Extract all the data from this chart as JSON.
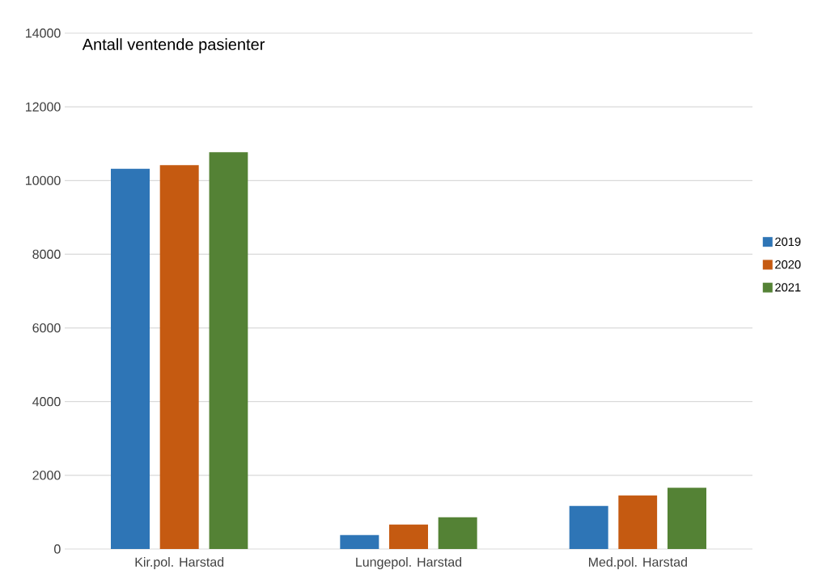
{
  "chart_data": {
    "type": "bar",
    "title": "Antall ventende pasienter",
    "categories": [
      "Kir.pol. Harstad",
      "Lungepol. Harstad",
      "Med.pol. Harstad"
    ],
    "series": [
      {
        "name": "2019",
        "color": "#2e75b6",
        "values": [
          10320,
          380,
          1170
        ]
      },
      {
        "name": "2020",
        "color": "#c55a11",
        "values": [
          10420,
          665,
          1455
        ]
      },
      {
        "name": "2021",
        "color": "#548235",
        "values": [
          10770,
          860,
          1660
        ]
      }
    ],
    "ylim": [
      0,
      14000
    ],
    "yticks": [
      0,
      2000,
      4000,
      6000,
      8000,
      10000,
      12000,
      14000
    ],
    "grid": "y",
    "legend": "right"
  }
}
